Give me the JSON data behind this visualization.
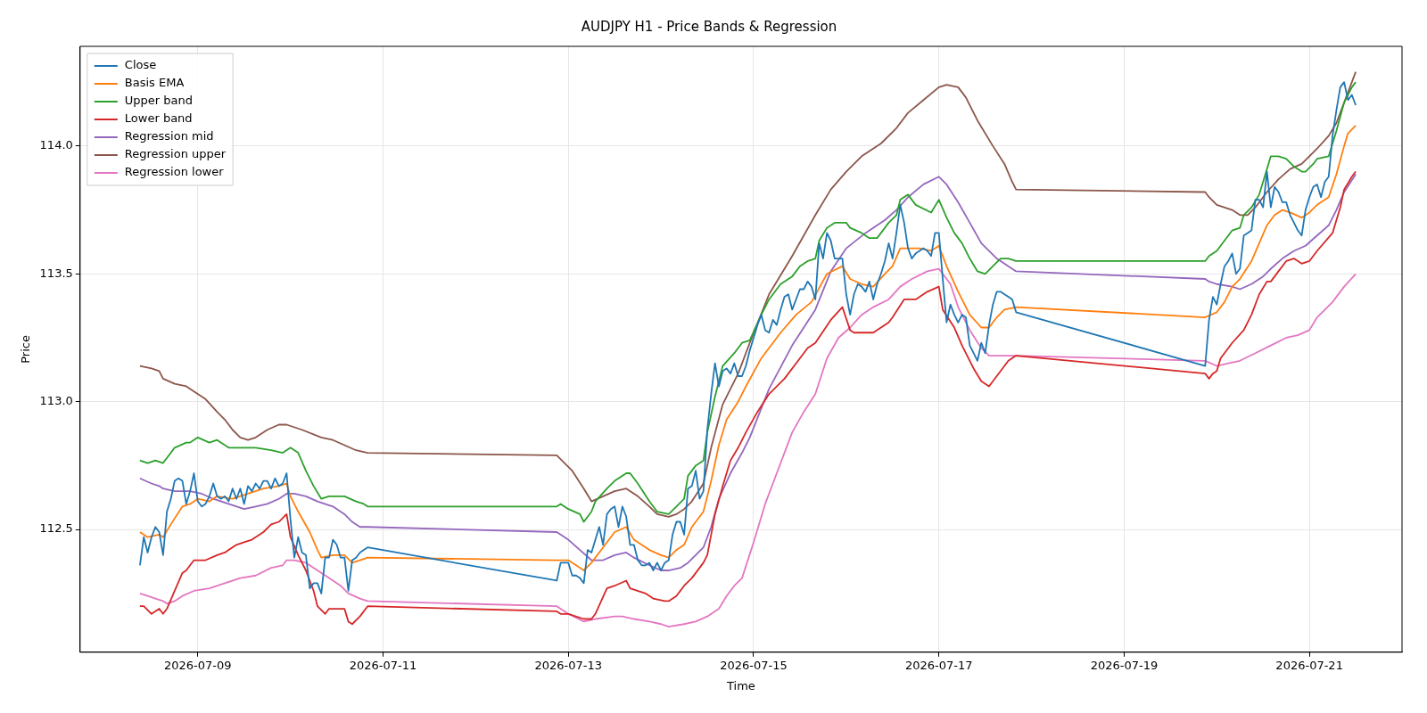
{
  "chart_data": {
    "type": "line",
    "title": "AUDJPY H1 - Price Bands & Regression",
    "xlabel": "Time",
    "ylabel": "Price",
    "xlim": [
      "2026-07-07T17:30",
      "2026-07-22T00:00"
    ],
    "xticks": [
      "2026-07-09",
      "2026-07-11",
      "2026-07-13",
      "2026-07-15",
      "2026-07-17",
      "2026-07-19",
      "2026-07-21"
    ],
    "ylim": [
      112.02,
      114.39
    ],
    "yticks": [
      112.5,
      {
        "value": 113,
        "label": "113.0"
      },
      113.5,
      {
        "value": 114,
        "label": "114.0"
      }
    ],
    "grid": true,
    "legend": "top left",
    "series": [
      {
        "name": "Close",
        "color": "#1f77b4",
        "x": [
          "2026-07-08T09:00",
          "2026-07-08T10:00",
          "2026-07-08T11:00",
          "2026-07-08T12:00",
          "2026-07-08T13:00",
          "2026-07-08T14:00",
          "2026-07-08T15:00",
          "2026-07-08T16:00",
          "2026-07-08T17:00",
          "2026-07-08T18:00",
          "2026-07-08T19:00",
          "2026-07-08T20:00",
          "2026-07-08T21:00",
          "2026-07-08T22:00",
          "2026-07-08T23:00",
          "2026-07-09T00:00",
          "2026-07-09T01:00",
          "2026-07-09T02:00",
          "2026-07-09T03:00",
          "2026-07-09T04:00",
          "2026-07-09T05:00",
          "2026-07-09T06:00",
          "2026-07-09T07:00",
          "2026-07-09T08:00",
          "2026-07-09T09:00",
          "2026-07-09T10:00",
          "2026-07-09T11:00",
          "2026-07-09T12:00",
          "2026-07-09T13:00",
          "2026-07-09T14:00",
          "2026-07-09T15:00",
          "2026-07-09T16:00",
          "2026-07-09T17:00",
          "2026-07-09T18:00",
          "2026-07-09T19:00",
          "2026-07-09T20:00",
          "2026-07-09T21:00",
          "2026-07-09T22:00",
          "2026-07-09T23:00",
          "2026-07-10T00:00",
          "2026-07-10T01:00",
          "2026-07-10T02:00",
          "2026-07-10T03:00",
          "2026-07-10T04:00",
          "2026-07-10T05:00",
          "2026-07-10T06:00",
          "2026-07-10T07:00",
          "2026-07-10T08:00",
          "2026-07-10T09:00",
          "2026-07-10T10:00",
          "2026-07-10T11:00",
          "2026-07-10T12:00",
          "2026-07-10T13:00",
          "2026-07-10T14:00",
          "2026-07-10T15:00",
          "2026-07-10T16:00",
          "2026-07-10T17:00",
          "2026-07-10T18:00",
          "2026-07-10T19:00",
          "2026-07-10T20:00",
          "2026-07-12T21:00",
          "2026-07-12T22:00",
          "2026-07-12T23:00",
          "2026-07-13T00:00",
          "2026-07-13T01:00",
          "2026-07-13T02:00",
          "2026-07-13T03:00",
          "2026-07-13T04:00",
          "2026-07-13T05:00",
          "2026-07-13T06:00",
          "2026-07-13T07:00",
          "2026-07-13T08:00",
          "2026-07-13T09:00",
          "2026-07-13T10:00",
          "2026-07-13T11:00",
          "2026-07-13T12:00",
          "2026-07-13T13:00",
          "2026-07-13T14:00",
          "2026-07-13T15:00",
          "2026-07-13T16:00",
          "2026-07-13T17:00",
          "2026-07-13T18:00",
          "2026-07-13T19:00",
          "2026-07-13T20:00",
          "2026-07-13T21:00",
          "2026-07-13T22:00",
          "2026-07-13T23:00",
          "2026-07-14T00:00",
          "2026-07-14T01:00",
          "2026-07-14T02:00",
          "2026-07-14T03:00",
          "2026-07-14T04:00",
          "2026-07-14T05:00",
          "2026-07-14T06:00",
          "2026-07-14T07:00",
          "2026-07-14T08:00",
          "2026-07-14T09:00",
          "2026-07-14T10:00",
          "2026-07-14T11:00",
          "2026-07-14T12:00",
          "2026-07-14T13:00",
          "2026-07-14T14:00",
          "2026-07-14T15:00",
          "2026-07-14T16:00",
          "2026-07-14T17:00",
          "2026-07-14T18:00",
          "2026-07-14T19:00",
          "2026-07-14T20:00",
          "2026-07-14T21:00",
          "2026-07-14T22:00",
          "2026-07-14T23:00",
          "2026-07-15T00:00",
          "2026-07-15T01:00",
          "2026-07-15T02:00",
          "2026-07-15T03:00",
          "2026-07-15T04:00",
          "2026-07-15T05:00",
          "2026-07-15T06:00",
          "2026-07-15T07:00",
          "2026-07-15T08:00",
          "2026-07-15T09:00",
          "2026-07-15T10:00",
          "2026-07-15T11:00",
          "2026-07-15T12:00",
          "2026-07-15T13:00",
          "2026-07-15T14:00",
          "2026-07-15T15:00",
          "2026-07-15T16:00",
          "2026-07-15T17:00",
          "2026-07-15T18:00",
          "2026-07-15T19:00",
          "2026-07-15T20:00",
          "2026-07-15T21:00",
          "2026-07-15T22:00",
          "2026-07-15T23:00",
          "2026-07-16T00:00",
          "2026-07-16T01:00",
          "2026-07-16T02:00",
          "2026-07-16T03:00",
          "2026-07-16T04:00",
          "2026-07-16T05:00",
          "2026-07-16T06:00",
          "2026-07-16T07:00",
          "2026-07-16T08:00",
          "2026-07-16T09:00",
          "2026-07-16T10:00",
          "2026-07-16T11:00",
          "2026-07-16T12:00",
          "2026-07-16T13:00",
          "2026-07-16T14:00",
          "2026-07-16T15:00",
          "2026-07-16T16:00",
          "2026-07-16T17:00",
          "2026-07-16T18:00",
          "2026-07-16T19:00",
          "2026-07-16T20:00",
          "2026-07-16T21:00",
          "2026-07-16T22:00",
          "2026-07-16T23:00",
          "2026-07-17T00:00",
          "2026-07-17T01:00",
          "2026-07-17T02:00",
          "2026-07-17T03:00",
          "2026-07-17T04:00",
          "2026-07-17T05:00",
          "2026-07-17T06:00",
          "2026-07-17T07:00",
          "2026-07-17T08:00",
          "2026-07-17T09:00",
          "2026-07-17T10:00",
          "2026-07-17T11:00",
          "2026-07-17T12:00",
          "2026-07-17T13:00",
          "2026-07-17T14:00",
          "2026-07-17T15:00",
          "2026-07-17T16:00",
          "2026-07-17T17:00",
          "2026-07-17T18:00",
          "2026-07-17T19:00",
          "2026-07-17T20:00",
          "2026-07-19T21:00",
          "2026-07-19T22:00",
          "2026-07-19T23:00",
          "2026-07-20T00:00",
          "2026-07-20T01:00",
          "2026-07-20T02:00",
          "2026-07-20T03:00",
          "2026-07-20T04:00",
          "2026-07-20T05:00",
          "2026-07-20T06:00",
          "2026-07-20T07:00",
          "2026-07-20T08:00",
          "2026-07-20T09:00",
          "2026-07-20T10:00",
          "2026-07-20T11:00",
          "2026-07-20T12:00",
          "2026-07-20T13:00",
          "2026-07-20T14:00",
          "2026-07-20T15:00",
          "2026-07-20T16:00",
          "2026-07-20T17:00",
          "2026-07-20T18:00",
          "2026-07-20T19:00",
          "2026-07-20T20:00",
          "2026-07-20T21:00",
          "2026-07-20T22:00",
          "2026-07-20T23:00",
          "2026-07-21T00:00",
          "2026-07-21T01:00",
          "2026-07-21T02:00",
          "2026-07-21T03:00",
          "2026-07-21T04:00",
          "2026-07-21T05:00",
          "2026-07-21T06:00",
          "2026-07-21T07:00",
          "2026-07-21T08:00",
          "2026-07-21T09:00",
          "2026-07-21T10:00",
          "2026-07-21T11:00",
          "2026-07-21T12:00"
        ],
        "values": [
          112.36,
          112.47,
          112.41,
          112.47,
          112.51,
          112.49,
          112.4,
          112.57,
          112.62,
          112.69,
          112.7,
          112.69,
          112.6,
          112.65,
          112.72,
          112.61,
          112.59,
          112.6,
          112.63,
          112.68,
          112.63,
          112.62,
          112.63,
          112.61,
          112.66,
          112.62,
          112.66,
          112.6,
          112.67,
          112.65,
          112.68,
          112.66,
          112.69,
          112.69,
          112.66,
          112.7,
          112.67,
          112.68,
          112.72,
          112.54,
          112.39,
          112.47,
          112.41,
          112.4,
          112.27,
          112.29,
          112.29,
          112.25,
          112.39,
          112.39,
          112.46,
          112.44,
          112.39,
          112.39,
          112.26,
          112.38,
          112.39,
          112.41,
          112.42,
          112.43,
          112.3,
          112.37,
          112.37,
          112.37,
          112.32,
          112.32,
          112.31,
          112.29,
          112.42,
          112.41,
          112.46,
          112.51,
          112.44,
          112.56,
          112.58,
          112.59,
          112.51,
          112.59,
          112.55,
          112.44,
          112.44,
          112.38,
          112.36,
          112.36,
          112.37,
          112.34,
          112.37,
          112.34,
          112.37,
          112.38,
          112.48,
          112.53,
          112.53,
          112.48,
          112.66,
          112.67,
          112.73,
          112.62,
          112.65,
          112.89,
          113.03,
          113.15,
          113.06,
          113.12,
          113.13,
          113.11,
          113.15,
          113.1,
          113.1,
          113.14,
          113.2,
          113.25,
          113.3,
          113.34,
          113.28,
          113.27,
          113.32,
          113.3,
          113.36,
          113.41,
          113.42,
          113.36,
          113.4,
          113.44,
          113.44,
          113.47,
          113.45,
          113.4,
          113.62,
          113.56,
          113.66,
          113.63,
          113.56,
          113.56,
          113.56,
          113.42,
          113.34,
          113.42,
          113.46,
          113.45,
          113.43,
          113.47,
          113.4,
          113.46,
          113.5,
          113.55,
          113.62,
          113.56,
          113.66,
          113.77,
          113.7,
          113.6,
          113.56,
          113.58,
          113.59,
          113.6,
          113.59,
          113.57,
          113.66,
          113.66,
          113.48,
          113.31,
          113.38,
          113.34,
          113.31,
          113.34,
          113.33,
          113.22,
          113.19,
          113.16,
          113.23,
          113.19,
          113.3,
          113.38,
          113.43,
          113.43,
          113.42,
          113.41,
          113.4,
          113.35,
          113.14,
          113.32,
          113.41,
          113.38,
          113.46,
          113.53,
          113.55,
          113.58,
          113.5,
          113.52,
          113.65,
          113.66,
          113.67,
          113.79,
          113.79,
          113.76,
          113.9,
          113.76,
          113.84,
          113.82,
          113.78,
          113.78,
          113.73,
          113.7,
          113.67,
          113.65,
          113.75,
          113.8,
          113.84,
          113.85,
          113.8,
          113.86,
          113.88,
          114.04,
          114.14,
          114.23,
          114.25,
          114.18,
          114.2,
          114.16
        ]
      },
      {
        "name": "Basis EMA",
        "color": "#ff7f0e",
        "x": [
          "2026-07-08T09:00",
          "2026-07-08T11:00",
          "2026-07-08T14:00",
          "2026-07-08T15:00",
          "2026-07-08T17:00",
          "2026-07-08T20:00",
          "2026-07-08T22:00",
          "2026-07-09T00:00",
          "2026-07-09T03:00",
          "2026-07-09T05:00",
          "2026-07-09T09:00",
          "2026-07-09T13:00",
          "2026-07-09T17:00",
          "2026-07-09T21:00",
          "2026-07-09T23:00",
          "2026-07-10T00:00",
          "2026-07-10T02:00",
          "2026-07-10T05:00",
          "2026-07-10T07:00",
          "2026-07-10T08:00",
          "2026-07-10T11:00",
          "2026-07-10T14:00",
          "2026-07-10T16:00",
          "2026-07-10T18:00",
          "2026-07-10T20:00",
          "2026-07-12T21:00",
          "2026-07-13T00:00",
          "2026-07-13T04:00",
          "2026-07-13T06:00",
          "2026-07-13T09:00",
          "2026-07-13T12:00",
          "2026-07-13T15:00",
          "2026-07-13T17:00",
          "2026-07-13T21:00",
          "2026-07-14T00:00",
          "2026-07-14T02:00",
          "2026-07-14T04:00",
          "2026-07-14T06:00",
          "2026-07-14T08:00",
          "2026-07-14T11:00",
          "2026-07-14T13:00",
          "2026-07-14T15:00",
          "2026-07-14T17:00",
          "2026-07-14T20:00",
          "2026-07-14T22:00",
          "2026-07-15T02:00",
          "2026-07-15T07:00",
          "2026-07-15T11:00",
          "2026-07-15T15:00",
          "2026-07-15T19:00",
          "2026-07-15T23:00",
          "2026-07-16T01:00",
          "2026-07-16T04:00",
          "2026-07-16T07:00",
          "2026-07-16T10:00",
          "2026-07-16T12:00",
          "2026-07-16T14:00",
          "2026-07-16T16:00",
          "2026-07-16T19:00",
          "2026-07-16T22:00",
          "2026-07-17T00:00",
          "2026-07-17T02:00",
          "2026-07-17T05:00",
          "2026-07-17T08:00",
          "2026-07-17T11:00",
          "2026-07-17T13:00",
          "2026-07-17T15:00",
          "2026-07-17T17:00",
          "2026-07-17T20:00",
          "2026-07-19T21:00",
          "2026-07-20T00:00",
          "2026-07-20T02:00",
          "2026-07-20T04:00",
          "2026-07-20T06:00",
          "2026-07-20T09:00",
          "2026-07-20T11:00",
          "2026-07-20T13:00",
          "2026-07-20T15:00",
          "2026-07-20T17:00",
          "2026-07-20T19:00",
          "2026-07-20T22:00",
          "2026-07-21T00:00",
          "2026-07-21T02:00",
          "2026-07-21T05:00",
          "2026-07-21T07:00",
          "2026-07-21T09:00",
          "2026-07-21T10:00",
          "2026-07-21T12:00"
        ],
        "values": [
          112.49,
          112.47,
          112.48,
          112.47,
          112.52,
          112.59,
          112.6,
          112.62,
          112.61,
          112.63,
          112.62,
          112.64,
          112.66,
          112.67,
          112.68,
          112.63,
          112.57,
          112.49,
          112.42,
          112.39,
          112.4,
          112.4,
          112.37,
          112.38,
          112.39,
          112.38,
          112.38,
          112.34,
          112.37,
          112.43,
          112.49,
          112.51,
          112.46,
          112.42,
          112.4,
          112.39,
          112.42,
          112.44,
          112.51,
          112.57,
          112.69,
          112.83,
          112.93,
          113.0,
          113.06,
          113.17,
          113.27,
          113.34,
          113.39,
          113.5,
          113.53,
          113.48,
          113.46,
          113.45,
          113.5,
          113.53,
          113.6,
          113.6,
          113.6,
          113.59,
          113.61,
          113.53,
          113.43,
          113.34,
          113.29,
          113.29,
          113.33,
          113.36,
          113.37,
          113.33,
          113.35,
          113.39,
          113.45,
          113.48,
          113.55,
          113.62,
          113.69,
          113.73,
          113.75,
          113.74,
          113.72,
          113.74,
          113.77,
          113.8,
          113.89,
          114.0,
          114.05,
          114.08
        ]
      },
      {
        "name": "Upper band",
        "color": "#2ca02c",
        "x": [
          "2026-07-08T09:00",
          "2026-07-08T11:00",
          "2026-07-08T13:00",
          "2026-07-08T15:00",
          "2026-07-08T18:00",
          "2026-07-08T21:00",
          "2026-07-08T22:00",
          "2026-07-09T00:00",
          "2026-07-09T03:00",
          "2026-07-09T05:00",
          "2026-07-09T08:00",
          "2026-07-09T12:00",
          "2026-07-09T15:00",
          "2026-07-09T19:00",
          "2026-07-09T22:00",
          "2026-07-10T00:00",
          "2026-07-10T02:00",
          "2026-07-10T04:00",
          "2026-07-10T06:00",
          "2026-07-10T08:00",
          "2026-07-10T10:00",
          "2026-07-10T14:00",
          "2026-07-10T17:00",
          "2026-07-10T19:00",
          "2026-07-10T20:00",
          "2026-07-12T21:00",
          "2026-07-12T22:00",
          "2026-07-13T00:00",
          "2026-07-13T03:00",
          "2026-07-13T04:00",
          "2026-07-13T06:00",
          "2026-07-13T07:00",
          "2026-07-13T10:00",
          "2026-07-13T12:00",
          "2026-07-13T15:00",
          "2026-07-13T16:00",
          "2026-07-13T18:00",
          "2026-07-13T21:00",
          "2026-07-13T23:00",
          "2026-07-14T02:00",
          "2026-07-14T04:00",
          "2026-07-14T06:00",
          "2026-07-14T07:00",
          "2026-07-14T09:00",
          "2026-07-14T11:00",
          "2026-07-14T12:00",
          "2026-07-14T14:00",
          "2026-07-14T16:00",
          "2026-07-14T19:00",
          "2026-07-14T21:00",
          "2026-07-14T23:00",
          "2026-07-15T02:00",
          "2026-07-15T04:00",
          "2026-07-15T07:00",
          "2026-07-15T10:00",
          "2026-07-15T12:00",
          "2026-07-15T14:00",
          "2026-07-15T16:00",
          "2026-07-15T17:00",
          "2026-07-15T19:00",
          "2026-07-15T21:00",
          "2026-07-16T00:00",
          "2026-07-16T01:00",
          "2026-07-16T04:00",
          "2026-07-16T06:00",
          "2026-07-16T08:00",
          "2026-07-16T11:00",
          "2026-07-16T13:00",
          "2026-07-16T14:00",
          "2026-07-16T16:00",
          "2026-07-16T18:00",
          "2026-07-16T22:00",
          "2026-07-17T00:00",
          "2026-07-17T02:00",
          "2026-07-17T04:00",
          "2026-07-17T06:00",
          "2026-07-17T08:00",
          "2026-07-17T10:00",
          "2026-07-17T12:00",
          "2026-07-17T14:00",
          "2026-07-17T16:00",
          "2026-07-17T18:00",
          "2026-07-17T20:00",
          "2026-07-19T21:00",
          "2026-07-19T22:00",
          "2026-07-20T00:00",
          "2026-07-20T03:00",
          "2026-07-20T04:00",
          "2026-07-20T06:00",
          "2026-07-20T07:00",
          "2026-07-20T09:00",
          "2026-07-20T11:00",
          "2026-07-20T13:00",
          "2026-07-20T14:00",
          "2026-07-20T16:00",
          "2026-07-20T18:00",
          "2026-07-20T20:00",
          "2026-07-20T22:00",
          "2026-07-20T23:00",
          "2026-07-21T01:00",
          "2026-07-21T02:00",
          "2026-07-21T05:00",
          "2026-07-21T07:00",
          "2026-07-21T09:00",
          "2026-07-21T11:00",
          "2026-07-21T12:00"
        ],
        "values": [
          112.77,
          112.76,
          112.77,
          112.76,
          112.82,
          112.84,
          112.84,
          112.86,
          112.84,
          112.85,
          112.82,
          112.82,
          112.82,
          112.81,
          112.8,
          112.82,
          112.8,
          112.73,
          112.67,
          112.62,
          112.63,
          112.63,
          112.61,
          112.6,
          112.59,
          112.59,
          112.6,
          112.58,
          112.56,
          112.53,
          112.57,
          112.61,
          112.66,
          112.69,
          112.72,
          112.72,
          112.68,
          112.61,
          112.57,
          112.56,
          112.59,
          112.62,
          112.71,
          112.75,
          112.77,
          112.88,
          113.02,
          113.14,
          113.19,
          113.23,
          113.24,
          113.34,
          113.4,
          113.46,
          113.49,
          113.53,
          113.55,
          113.56,
          113.63,
          113.68,
          113.7,
          113.7,
          113.68,
          113.66,
          113.64,
          113.64,
          113.7,
          113.73,
          113.79,
          113.81,
          113.77,
          113.74,
          113.79,
          113.72,
          113.66,
          113.62,
          113.56,
          113.51,
          113.5,
          113.53,
          113.56,
          113.56,
          113.55,
          113.55,
          113.57,
          113.59,
          113.65,
          113.67,
          113.68,
          113.73,
          113.76,
          113.81,
          113.91,
          113.96,
          113.96,
          113.95,
          113.92,
          113.9,
          113.9,
          113.93,
          113.95,
          113.96,
          114.06,
          114.17,
          114.23,
          114.25
        ]
      },
      {
        "name": "Lower band",
        "color": "#d62728",
        "x": [
          "2026-07-08T09:00",
          "2026-07-08T10:00",
          "2026-07-08T12:00",
          "2026-07-08T14:00",
          "2026-07-08T15:00",
          "2026-07-08T16:00",
          "2026-07-08T18:00",
          "2026-07-08T20:00",
          "2026-07-08T21:00",
          "2026-07-08T23:00",
          "2026-07-09T02:00",
          "2026-07-09T05:00",
          "2026-07-09T07:00",
          "2026-07-09T10:00",
          "2026-07-09T12:00",
          "2026-07-09T14:00",
          "2026-07-09T17:00",
          "2026-07-09T19:00",
          "2026-07-09T21:00",
          "2026-07-09T23:00",
          "2026-07-10T00:00",
          "2026-07-10T02:00",
          "2026-07-10T04:00",
          "2026-07-10T06:00",
          "2026-07-10T07:00",
          "2026-07-10T09:00",
          "2026-07-10T10:00",
          "2026-07-10T12:00",
          "2026-07-10T14:00",
          "2026-07-10T15:00",
          "2026-07-10T16:00",
          "2026-07-10T18:00",
          "2026-07-10T20:00",
          "2026-07-12T21:00",
          "2026-07-12T22:00",
          "2026-07-13T00:00",
          "2026-07-13T04:00",
          "2026-07-13T06:00",
          "2026-07-13T07:00",
          "2026-07-13T10:00",
          "2026-07-13T12:00",
          "2026-07-13T15:00",
          "2026-07-13T16:00",
          "2026-07-13T20:00",
          "2026-07-13T22:00",
          "2026-07-14T01:00",
          "2026-07-14T02:00",
          "2026-07-14T04:00",
          "2026-07-14T06:00",
          "2026-07-14T08:00",
          "2026-07-14T10:00",
          "2026-07-14T11:00",
          "2026-07-14T12:00",
          "2026-07-14T14:00",
          "2026-07-14T16:00",
          "2026-07-14T18:00",
          "2026-07-14T20:00",
          "2026-07-14T22:00",
          "2026-07-15T01:00",
          "2026-07-15T04:00",
          "2026-07-15T08:00",
          "2026-07-15T11:00",
          "2026-07-15T14:00",
          "2026-07-15T16:00",
          "2026-07-15T20:00",
          "2026-07-15T23:00",
          "2026-07-16T01:00",
          "2026-07-16T02:00",
          "2026-07-16T05:00",
          "2026-07-16T07:00",
          "2026-07-16T11:00",
          "2026-07-16T12:00",
          "2026-07-16T15:00",
          "2026-07-16T18:00",
          "2026-07-16T21:00",
          "2026-07-17T00:00",
          "2026-07-17T01:00",
          "2026-07-17T04:00",
          "2026-07-17T06:00",
          "2026-07-17T09:00",
          "2026-07-17T11:00",
          "2026-07-17T13:00",
          "2026-07-17T15:00",
          "2026-07-17T18:00",
          "2026-07-17T20:00",
          "2026-07-19T21:00",
          "2026-07-19T22:00",
          "2026-07-19T23:00",
          "2026-07-20T00:00",
          "2026-07-20T01:00",
          "2026-07-20T04:00",
          "2026-07-20T07:00",
          "2026-07-20T09:00",
          "2026-07-20T11:00",
          "2026-07-20T13:00",
          "2026-07-20T14:00",
          "2026-07-20T16:00",
          "2026-07-20T18:00",
          "2026-07-20T20:00",
          "2026-07-20T22:00",
          "2026-07-21T00:00",
          "2026-07-21T02:00",
          "2026-07-21T06:00",
          "2026-07-21T08:00",
          "2026-07-21T09:00",
          "2026-07-21T11:00",
          "2026-07-21T12:00"
        ],
        "values": [
          112.2,
          112.2,
          112.17,
          112.19,
          112.17,
          112.19,
          112.26,
          112.33,
          112.34,
          112.38,
          112.38,
          112.4,
          112.41,
          112.44,
          112.45,
          112.46,
          112.49,
          112.52,
          112.53,
          112.56,
          112.47,
          112.4,
          112.34,
          112.26,
          112.2,
          112.17,
          112.19,
          112.19,
          112.19,
          112.14,
          112.13,
          112.16,
          112.2,
          112.18,
          112.17,
          112.17,
          112.15,
          112.15,
          112.17,
          112.27,
          112.28,
          112.3,
          112.27,
          112.25,
          112.23,
          112.22,
          112.22,
          112.24,
          112.28,
          112.31,
          112.35,
          112.37,
          112.4,
          112.56,
          112.67,
          112.77,
          112.82,
          112.88,
          112.96,
          113.03,
          113.09,
          113.15,
          113.21,
          113.23,
          113.32,
          113.37,
          113.28,
          113.27,
          113.27,
          113.27,
          113.31,
          113.33,
          113.4,
          113.4,
          113.43,
          113.45,
          113.36,
          113.29,
          113.22,
          113.13,
          113.08,
          113.06,
          113.1,
          113.16,
          113.18,
          113.11,
          113.09,
          113.11,
          113.12,
          113.17,
          113.23,
          113.28,
          113.34,
          113.42,
          113.47,
          113.47,
          113.51,
          113.55,
          113.56,
          113.54,
          113.55,
          113.59,
          113.66,
          113.76,
          113.83,
          113.88,
          113.9
        ]
      },
      {
        "name": "Regression mid",
        "color": "#9467bd",
        "x": [
          "2026-07-08T09:00",
          "2026-07-08T12:00",
          "2026-07-08T14:00",
          "2026-07-08T15:00",
          "2026-07-08T18:00",
          "2026-07-08T22:00",
          "2026-07-09T01:00",
          "2026-07-09T04:00",
          "2026-07-09T08:00",
          "2026-07-09T12:00",
          "2026-07-09T15:00",
          "2026-07-09T18:00",
          "2026-07-09T21:00",
          "2026-07-09T23:00",
          "2026-07-10T01:00",
          "2026-07-10T04:00",
          "2026-07-10T07:00",
          "2026-07-10T11:00",
          "2026-07-10T14:00",
          "2026-07-10T16:00",
          "2026-07-10T18:00",
          "2026-07-10T20:00",
          "2026-07-12T21:00",
          "2026-07-13T00:00",
          "2026-07-13T03:00",
          "2026-07-13T06:00",
          "2026-07-13T09:00",
          "2026-07-13T12:00",
          "2026-07-13T15:00",
          "2026-07-13T17:00",
          "2026-07-13T21:00",
          "2026-07-14T00:00",
          "2026-07-14T02:00",
          "2026-07-14T05:00",
          "2026-07-14T07:00",
          "2026-07-14T11:00",
          "2026-07-14T13:00",
          "2026-07-14T15:00",
          "2026-07-14T18:00",
          "2026-07-14T21:00",
          "2026-07-14T23:00",
          "2026-07-15T04:00",
          "2026-07-15T10:00",
          "2026-07-15T16:00",
          "2026-07-15T20:00",
          "2026-07-16T00:00",
          "2026-07-16T05:00",
          "2026-07-16T10:00",
          "2026-07-16T13:00",
          "2026-07-16T16:00",
          "2026-07-16T20:00",
          "2026-07-17T00:00",
          "2026-07-17T02:00",
          "2026-07-17T05:00",
          "2026-07-17T08:00",
          "2026-07-17T11:00",
          "2026-07-17T15:00",
          "2026-07-17T18:00",
          "2026-07-17T20:00",
          "2026-07-19T21:00",
          "2026-07-19T22:00",
          "2026-07-20T00:00",
          "2026-07-20T04:00",
          "2026-07-20T06:00",
          "2026-07-20T09:00",
          "2026-07-20T12:00",
          "2026-07-20T14:00",
          "2026-07-20T17:00",
          "2026-07-20T20:00",
          "2026-07-20T23:00",
          "2026-07-21T02:00",
          "2026-07-21T05:00",
          "2026-07-21T07:00",
          "2026-07-21T09:00",
          "2026-07-21T12:00"
        ],
        "values": [
          112.7,
          112.68,
          112.67,
          112.66,
          112.65,
          112.65,
          112.64,
          112.62,
          112.6,
          112.58,
          112.59,
          112.6,
          112.62,
          112.64,
          112.64,
          112.63,
          112.61,
          112.59,
          112.56,
          112.53,
          112.51,
          112.51,
          112.49,
          112.46,
          112.42,
          112.38,
          112.38,
          112.4,
          112.41,
          112.39,
          112.36,
          112.34,
          112.34,
          112.35,
          112.37,
          112.43,
          112.51,
          112.62,
          112.72,
          112.8,
          112.86,
          113.05,
          113.22,
          113.36,
          113.51,
          113.6,
          113.66,
          113.71,
          113.75,
          113.8,
          113.85,
          113.88,
          113.85,
          113.78,
          113.7,
          113.62,
          113.56,
          113.53,
          113.51,
          113.48,
          113.47,
          113.46,
          113.45,
          113.44,
          113.46,
          113.49,
          113.52,
          113.56,
          113.59,
          113.61,
          113.65,
          113.69,
          113.75,
          113.82,
          113.89
        ]
      },
      {
        "name": "Regression upper",
        "color": "#8c564b",
        "x": [
          "2026-07-08T09:00",
          "2026-07-08T12:00",
          "2026-07-08T14:00",
          "2026-07-08T15:00",
          "2026-07-08T18:00",
          "2026-07-08T21:00",
          "2026-07-08T23:00",
          "2026-07-09T02:00",
          "2026-07-09T05:00",
          "2026-07-09T07:00",
          "2026-07-09T09:00",
          "2026-07-09T11:00",
          "2026-07-09T13:00",
          "2026-07-09T15:00",
          "2026-07-09T18:00",
          "2026-07-09T21:00",
          "2026-07-09T23:00",
          "2026-07-10T03:00",
          "2026-07-10T08:00",
          "2026-07-10T11:00",
          "2026-07-10T14:00",
          "2026-07-10T17:00",
          "2026-07-10T20:00",
          "2026-07-12T21:00",
          "2026-07-12T23:00",
          "2026-07-13T01:00",
          "2026-07-13T04:00",
          "2026-07-13T06:00",
          "2026-07-13T09:00",
          "2026-07-13T12:00",
          "2026-07-13T15:00",
          "2026-07-13T18:00",
          "2026-07-13T21:00",
          "2026-07-13T23:00",
          "2026-07-14T02:00",
          "2026-07-14T04:00",
          "2026-07-14T06:00",
          "2026-07-14T08:00",
          "2026-07-14T11:00",
          "2026-07-14T13:00",
          "2026-07-14T16:00",
          "2026-07-14T20:00",
          "2026-07-14T23:00",
          "2026-07-15T04:00",
          "2026-07-15T10:00",
          "2026-07-15T16:00",
          "2026-07-15T20:00",
          "2026-07-16T00:00",
          "2026-07-16T04:00",
          "2026-07-16T09:00",
          "2026-07-16T13:00",
          "2026-07-16T16:00",
          "2026-07-16T20:00",
          "2026-07-17T00:00",
          "2026-07-17T02:00",
          "2026-07-17T05:00",
          "2026-07-17T07:00",
          "2026-07-17T10:00",
          "2026-07-17T14:00",
          "2026-07-17T17:00",
          "2026-07-17T19:00",
          "2026-07-17T20:00",
          "2026-07-19T21:00",
          "2026-07-19T22:00",
          "2026-07-20T00:00",
          "2026-07-20T04:00",
          "2026-07-20T06:00",
          "2026-07-20T08:00",
          "2026-07-20T10:00",
          "2026-07-20T13:00",
          "2026-07-20T16:00",
          "2026-07-20T19:00",
          "2026-07-20T22:00",
          "2026-07-21T00:00",
          "2026-07-21T02:00",
          "2026-07-21T05:00",
          "2026-07-21T07:00",
          "2026-07-21T09:00",
          "2026-07-21T12:00"
        ],
        "values": [
          113.14,
          113.13,
          113.12,
          113.09,
          113.07,
          113.06,
          113.04,
          113.01,
          112.96,
          112.93,
          112.89,
          112.86,
          112.85,
          112.86,
          112.89,
          112.91,
          112.91,
          112.89,
          112.86,
          112.85,
          112.83,
          112.81,
          112.8,
          112.79,
          112.76,
          112.73,
          112.66,
          112.61,
          112.63,
          112.65,
          112.66,
          112.63,
          112.59,
          112.56,
          112.55,
          112.56,
          112.58,
          112.61,
          112.68,
          112.82,
          112.99,
          113.11,
          113.23,
          113.42,
          113.57,
          113.73,
          113.83,
          113.9,
          113.96,
          114.01,
          114.07,
          114.13,
          114.18,
          114.23,
          114.24,
          114.23,
          114.19,
          114.1,
          114.0,
          113.93,
          113.86,
          113.83,
          113.82,
          113.8,
          113.77,
          113.75,
          113.73,
          113.73,
          113.76,
          113.82,
          113.87,
          113.91,
          113.93,
          113.96,
          113.99,
          114.04,
          114.09,
          114.17,
          114.29
        ]
      },
      {
        "name": "Regression lower",
        "color": "#e377c2",
        "x": [
          "2026-07-08T09:00",
          "2026-07-08T11:00",
          "2026-07-08T13:00",
          "2026-07-08T15:00",
          "2026-07-08T16:00",
          "2026-07-08T18:00",
          "2026-07-08T20:00",
          "2026-07-08T23:00",
          "2026-07-09T03:00",
          "2026-07-09T07:00",
          "2026-07-09T11:00",
          "2026-07-09T15:00",
          "2026-07-09T19:00",
          "2026-07-09T22:00",
          "2026-07-09T23:00",
          "2026-07-10T01:00",
          "2026-07-10T04:00",
          "2026-07-10T07:00",
          "2026-07-10T10:00",
          "2026-07-10T13:00",
          "2026-07-10T15:00",
          "2026-07-10T18:00",
          "2026-07-10T20:00",
          "2026-07-12T21:00",
          "2026-07-13T00:00",
          "2026-07-13T04:00",
          "2026-07-13T07:00",
          "2026-07-13T12:00",
          "2026-07-13T14:00",
          "2026-07-13T17:00",
          "2026-07-13T21:00",
          "2026-07-14T00:00",
          "2026-07-14T02:00",
          "2026-07-14T06:00",
          "2026-07-14T09:00",
          "2026-07-14T12:00",
          "2026-07-14T15:00",
          "2026-07-14T17:00",
          "2026-07-14T19:00",
          "2026-07-14T21:00",
          "2026-07-15T00:00",
          "2026-07-15T03:00",
          "2026-07-15T07:00",
          "2026-07-15T10:00",
          "2026-07-15T13:00",
          "2026-07-15T16:00",
          "2026-07-15T19:00",
          "2026-07-15T22:00",
          "2026-07-16T01:00",
          "2026-07-16T04:00",
          "2026-07-16T07:00",
          "2026-07-16T11:00",
          "2026-07-16T14:00",
          "2026-07-16T17:00",
          "2026-07-16T21:00",
          "2026-07-17T00:00",
          "2026-07-17T03:00",
          "2026-07-17T05:00",
          "2026-07-17T08:00",
          "2026-07-17T11:00",
          "2026-07-17T13:00",
          "2026-07-17T17:00",
          "2026-07-17T20:00",
          "2026-07-19T21:00",
          "2026-07-20T00:00",
          "2026-07-20T03:00",
          "2026-07-20T06:00",
          "2026-07-20T10:00",
          "2026-07-20T14:00",
          "2026-07-20T18:00",
          "2026-07-20T21:00",
          "2026-07-21T00:00",
          "2026-07-21T02:00",
          "2026-07-21T06:00",
          "2026-07-21T09:00",
          "2026-07-21T12:00"
        ],
        "values": [
          112.25,
          112.24,
          112.23,
          112.22,
          112.21,
          112.22,
          112.24,
          112.26,
          112.27,
          112.29,
          112.31,
          112.32,
          112.35,
          112.36,
          112.38,
          112.38,
          112.37,
          112.34,
          112.31,
          112.28,
          112.25,
          112.23,
          112.22,
          112.2,
          112.17,
          112.14,
          112.15,
          112.16,
          112.16,
          112.15,
          112.14,
          112.13,
          112.12,
          112.13,
          112.14,
          112.16,
          112.19,
          112.24,
          112.28,
          112.31,
          112.45,
          112.6,
          112.76,
          112.88,
          112.96,
          113.03,
          113.17,
          113.25,
          113.29,
          113.34,
          113.37,
          113.4,
          113.45,
          113.48,
          113.51,
          113.52,
          113.46,
          113.37,
          113.28,
          113.21,
          113.18,
          113.18,
          113.18,
          113.16,
          113.14,
          113.15,
          113.16,
          113.19,
          113.22,
          113.25,
          113.26,
          113.28,
          113.33,
          113.39,
          113.45,
          113.5
        ]
      }
    ]
  }
}
